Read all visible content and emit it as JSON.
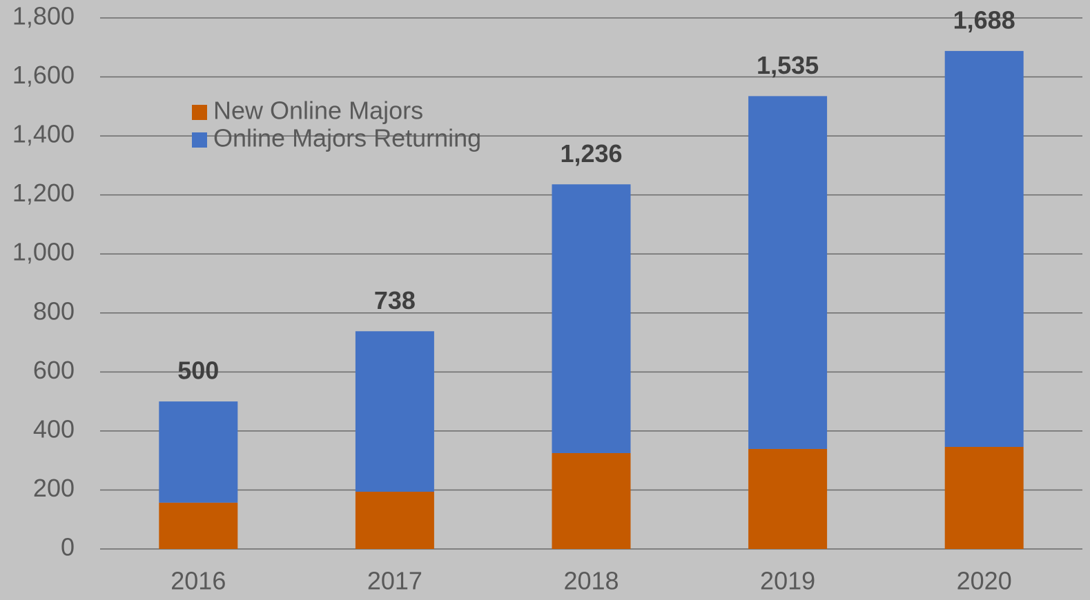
{
  "chart_data": {
    "type": "stacked_bar",
    "categories": [
      "2016",
      "2017",
      "2018",
      "2019",
      "2020"
    ],
    "series": [
      {
        "name": "New Online Majors",
        "color": "#c55a00",
        "values": [
          157,
          194,
          325,
          339,
          346
        ]
      },
      {
        "name": "Online Majors Returning",
        "color": "#4472c4",
        "values": [
          343,
          544,
          911,
          1196,
          1342
        ]
      }
    ],
    "totals": [
      500,
      738,
      1236,
      1535,
      1688
    ],
    "total_labels": [
      "500",
      "738",
      "1,236",
      "1,535",
      "1,688"
    ],
    "ylim": [
      0,
      1800
    ],
    "yticks": [
      0,
      200,
      400,
      600,
      800,
      {
        "value": 1000,
        "label": "1,000"
      },
      {
        "value": 1200,
        "label": "1,200"
      },
      {
        "value": 1400,
        "label": "1,400"
      },
      {
        "value": 1600,
        "label": "1,600"
      },
      {
        "value": 1800,
        "label": "1,800"
      }
    ],
    "grid": true,
    "legend": "top-left"
  }
}
